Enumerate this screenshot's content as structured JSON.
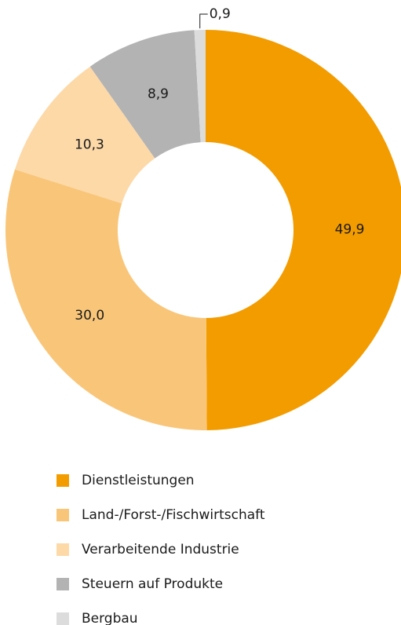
{
  "chart_data": {
    "type": "donut",
    "categories": [
      "Dienstleistungen",
      "Land-/Forst-/Fischwirtschaft",
      "Verarbeitende Industrie",
      "Steuern auf Produkte",
      "Bergbau"
    ],
    "values": [
      49.9,
      30.0,
      10.3,
      8.9,
      0.9
    ],
    "value_labels": [
      "49,9",
      "30,0",
      "10,3",
      "8,9",
      "0,9"
    ],
    "colors": [
      "#f39c00",
      "#f9c679",
      "#fdd9a8",
      "#b3b3b3",
      "#dcdcdc"
    ],
    "legend": "bottom"
  }
}
